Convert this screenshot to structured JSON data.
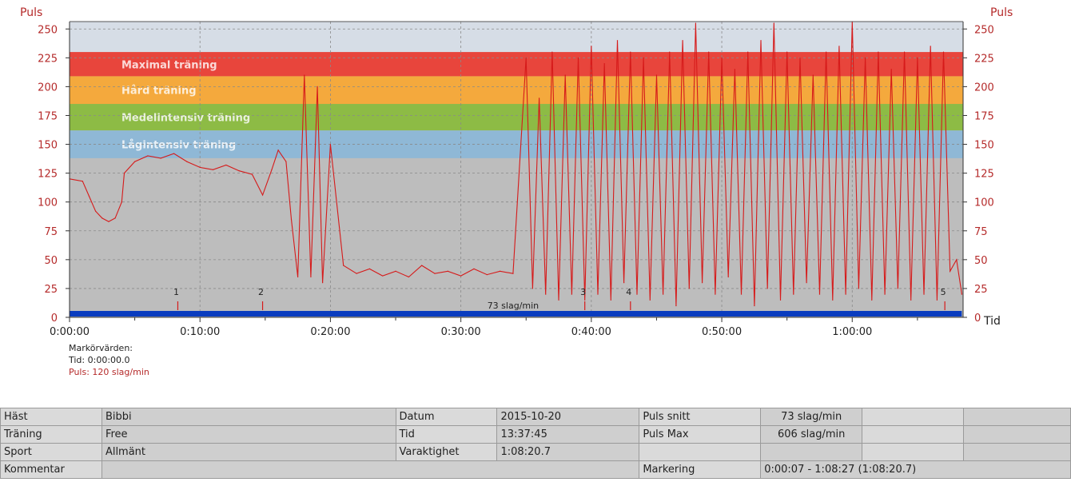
{
  "chart_data": {
    "type": "line",
    "ylabel_left": "Puls",
    "ylabel_right": "Puls",
    "xlabel": "Tid",
    "ylim": [
      0,
      250
    ],
    "yticks": [
      0,
      25,
      50,
      75,
      100,
      125,
      150,
      175,
      200,
      225,
      250
    ],
    "xlim_minutes": [
      0,
      68.5
    ],
    "xticks": [
      {
        "min": 0,
        "label": "0:00:00"
      },
      {
        "min": 10,
        "label": "0:10:00"
      },
      {
        "min": 20,
        "label": "0:20:00"
      },
      {
        "min": 30,
        "label": "0:30:00"
      },
      {
        "min": 40,
        "label": "0:40:00"
      },
      {
        "min": 50,
        "label": "0:50:00"
      },
      {
        "min": 60,
        "label": "1:00:00"
      }
    ],
    "zones": [
      {
        "label": "Maximal träning",
        "from": 209,
        "to": 230,
        "color": "#e8453c"
      },
      {
        "label": "Hård träning",
        "from": 185,
        "to": 209,
        "color": "#f4a93d"
      },
      {
        "label": "Medelintensiv träning",
        "from": 162,
        "to": 185,
        "color": "#8dbb45"
      },
      {
        "label": "Lågintensiv träning",
        "from": 138,
        "to": 162,
        "color": "#8fb8d6"
      }
    ],
    "avg_label": "73 slag/min",
    "markers": [
      {
        "num": "1",
        "min": 8.3
      },
      {
        "num": "2",
        "min": 14.8
      },
      {
        "num": "3",
        "min": 39.5
      },
      {
        "num": "4",
        "min": 43.0
      },
      {
        "num": "5",
        "min": 67.1
      }
    ],
    "series": [
      {
        "color": "#d61a1a",
        "points": [
          [
            0,
            120
          ],
          [
            1,
            118
          ],
          [
            1.5,
            105
          ],
          [
            2,
            92
          ],
          [
            2.5,
            86
          ],
          [
            3,
            83
          ],
          [
            3.5,
            86
          ],
          [
            4,
            100
          ],
          [
            4.2,
            125
          ],
          [
            5,
            135
          ],
          [
            6,
            140
          ],
          [
            7,
            138
          ],
          [
            8,
            142
          ],
          [
            9,
            135
          ],
          [
            10,
            130
          ],
          [
            11,
            128
          ],
          [
            12,
            132
          ],
          [
            13,
            127
          ],
          [
            14,
            124
          ],
          [
            14.8,
            106
          ],
          [
            15.5,
            128
          ],
          [
            16,
            145
          ],
          [
            16.6,
            135
          ],
          [
            17,
            85
          ],
          [
            17.5,
            35
          ],
          [
            18,
            210
          ],
          [
            18.5,
            35
          ],
          [
            19,
            200
          ],
          [
            19.4,
            30
          ],
          [
            20,
            150
          ],
          [
            21,
            45
          ],
          [
            22,
            38
          ],
          [
            23,
            42
          ],
          [
            24,
            36
          ],
          [
            25,
            40
          ],
          [
            26,
            35
          ],
          [
            27,
            45
          ],
          [
            28,
            38
          ],
          [
            29,
            40
          ],
          [
            30,
            36
          ],
          [
            31,
            42
          ],
          [
            32,
            37
          ],
          [
            33,
            40
          ],
          [
            34,
            38
          ],
          [
            35,
            225
          ],
          [
            35.5,
            25
          ],
          [
            36,
            190
          ],
          [
            36.5,
            20
          ],
          [
            37,
            230
          ],
          [
            37.5,
            15
          ],
          [
            38,
            210
          ],
          [
            38.5,
            20
          ],
          [
            39,
            225
          ],
          [
            39.5,
            15
          ],
          [
            40,
            235
          ],
          [
            40.5,
            20
          ],
          [
            41,
            220
          ],
          [
            41.5,
            15
          ],
          [
            42,
            240
          ],
          [
            42.5,
            30
          ],
          [
            43,
            230
          ],
          [
            43.5,
            20
          ],
          [
            44,
            225
          ],
          [
            44.5,
            15
          ],
          [
            45,
            210
          ],
          [
            45.5,
            20
          ],
          [
            46,
            230
          ],
          [
            46.5,
            10
          ],
          [
            47,
            240
          ],
          [
            47.5,
            25
          ],
          [
            48,
            255
          ],
          [
            48.5,
            30
          ],
          [
            49,
            230
          ],
          [
            49.5,
            20
          ],
          [
            50,
            225
          ],
          [
            50.5,
            35
          ],
          [
            51,
            215
          ],
          [
            51.5,
            20
          ],
          [
            52,
            230
          ],
          [
            52.5,
            10
          ],
          [
            53,
            240
          ],
          [
            53.5,
            25
          ],
          [
            54,
            255
          ],
          [
            54.5,
            15
          ],
          [
            55,
            230
          ],
          [
            55.5,
            20
          ],
          [
            56,
            225
          ],
          [
            56.5,
            30
          ],
          [
            57,
            210
          ],
          [
            57.5,
            20
          ],
          [
            58,
            230
          ],
          [
            58.5,
            15
          ],
          [
            59,
            235
          ],
          [
            59.5,
            20
          ],
          [
            60,
            260
          ],
          [
            60.5,
            25
          ],
          [
            61,
            225
          ],
          [
            61.5,
            15
          ],
          [
            62,
            230
          ],
          [
            62.5,
            20
          ],
          [
            63,
            215
          ],
          [
            63.5,
            25
          ],
          [
            64,
            230
          ],
          [
            64.5,
            15
          ],
          [
            65,
            225
          ],
          [
            65.5,
            20
          ],
          [
            66,
            235
          ],
          [
            66.5,
            15
          ],
          [
            67,
            230
          ],
          [
            67.5,
            40
          ],
          [
            68,
            50
          ],
          [
            68.4,
            20
          ]
        ]
      }
    ]
  },
  "marker_info": {
    "title": "Markörvärden:",
    "time": "Tid: 0:00:00.0",
    "pulse": "Puls: 120 slag/min"
  },
  "table": {
    "rows": [
      [
        "Häst",
        "Bibbi",
        "Datum",
        "2015-10-20",
        "Puls snitt",
        "73 slag/min",
        "",
        ""
      ],
      [
        "Träning",
        "Free",
        "Tid",
        "13:37:45",
        "Puls Max",
        "606 slag/min",
        "",
        ""
      ],
      [
        "Sport",
        "Allmänt",
        "Varaktighet",
        "1:08:20.7",
        "",
        "",
        "",
        ""
      ],
      [
        "Kommentar",
        "",
        "",
        "",
        "Markering",
        "0:00:07 - 1:08:27 (1:08:20.7)",
        "",
        ""
      ]
    ]
  }
}
